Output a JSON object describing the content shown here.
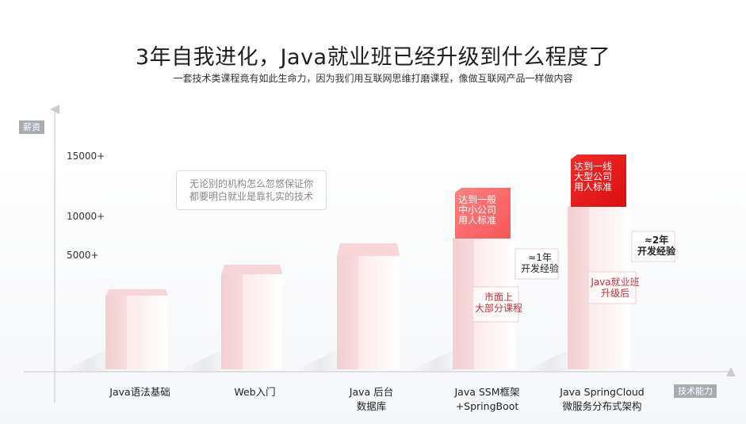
{
  "title": "3年自我进化，Java就业班已经升级到什么程度了",
  "subtitle": "一套技术类课程竟有如此生命力，因为我们用互联网思维打磨课程，像做互联网产品一样做内容",
  "y_axis_badge": "薪资",
  "x_axis_badge": "技术能力",
  "note": {
    "line1": "无论别的机构怎么忽悠保证你",
    "line2": "都要明白就业是靠扎实的技术"
  },
  "chart_data": {
    "type": "bar",
    "y_ticks": [
      "5000+",
      "10000+",
      "15000+"
    ],
    "categories": [
      {
        "line1": "Java语法基础",
        "line2": ""
      },
      {
        "line1": "Web入门",
        "line2": ""
      },
      {
        "line1": "Java 后台",
        "line2": "数据库"
      },
      {
        "line1": "Java SSM框架",
        "line2": "+SpringBoot"
      },
      {
        "line1": "Java SpringCloud",
        "line2": "微服务分布式架构"
      }
    ],
    "highlight_blocks": [
      {
        "bar": 3,
        "lines": [
          "达到一般",
          "中小公司",
          "用人标准"
        ],
        "color": "#f86a6a"
      },
      {
        "bar": 4,
        "lines": [
          "达到一线",
          "大型公司",
          "用人标准"
        ],
        "color": "#e81d1d"
      }
    ],
    "annotations": [
      {
        "bar": 3,
        "text_lines": [
          "市面上",
          "大部分课程"
        ],
        "color": "#c0313a"
      },
      {
        "bar": 4,
        "text_lines": [
          "Java就业班",
          "升级后"
        ],
        "color": "#c0313a"
      }
    ],
    "experience_labels": [
      {
        "bar": 3,
        "text_lines": [
          "≈1年",
          "开发经验"
        ],
        "bold": false
      },
      {
        "bar": 4,
        "text_lines": [
          "≈2年",
          "开发经验"
        ],
        "bold": true
      }
    ]
  }
}
